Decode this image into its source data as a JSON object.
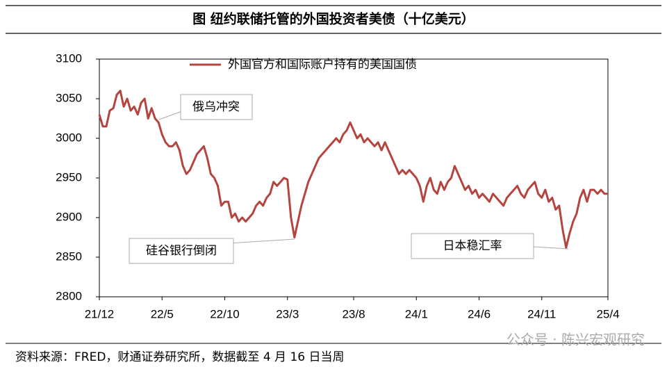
{
  "chart_data": {
    "type": "line",
    "title": "图  纽约联储托管的外国投资者美债（十亿美元）",
    "source": "资料来源：FRED，财通证券研究所，数据截至 4 月 16 日当周",
    "watermark": "公众号 · 陈兴宏观研究",
    "xlim": [
      0,
      146
    ],
    "xticks": [
      {
        "value": 0,
        "label": "21/12"
      },
      {
        "value": 18,
        "label": "22/5"
      },
      {
        "value": 36,
        "label": "22/10"
      },
      {
        "value": 54,
        "label": "23/3"
      },
      {
        "value": 73,
        "label": "23/8"
      },
      {
        "value": 91,
        "label": "24/1"
      },
      {
        "value": 109,
        "label": "24/6"
      },
      {
        "value": 127,
        "label": "24/11"
      },
      {
        "value": 146,
        "label": "25/4"
      }
    ],
    "ylim": [
      2800,
      3100
    ],
    "yticks": [
      2800,
      2850,
      2900,
      2950,
      3000,
      3050,
      3100
    ],
    "series": [
      {
        "name": "外国官方和国际账户持有的美国国债",
        "color": "#b5443f",
        "values": [
          3030,
          3015,
          3015,
          3035,
          3038,
          3055,
          3060,
          3040,
          3050,
          3035,
          3040,
          3030,
          3045,
          3050,
          3025,
          3038,
          3025,
          3020,
          3005,
          2995,
          2990,
          2990,
          2995,
          2985,
          2965,
          2955,
          2960,
          2970,
          2980,
          2985,
          2990,
          2975,
          2955,
          2950,
          2940,
          2915,
          2920,
          2920,
          2900,
          2905,
          2895,
          2900,
          2895,
          2900,
          2905,
          2915,
          2920,
          2915,
          2925,
          2930,
          2945,
          2940,
          2945,
          2950,
          2948,
          2900,
          2875,
          2895,
          2915,
          2930,
          2945,
          2955,
          2965,
          2975,
          2980,
          2985,
          2990,
          2995,
          3000,
          2995,
          3005,
          3010,
          3020,
          3010,
          3000,
          3005,
          2995,
          3000,
          2995,
          2990,
          2995,
          2985,
          2995,
          2985,
          2975,
          2965,
          2955,
          2960,
          2955,
          2960,
          2955,
          2950,
          2940,
          2920,
          2940,
          2950,
          2935,
          2930,
          2945,
          2935,
          2945,
          2950,
          2965,
          2955,
          2945,
          2935,
          2940,
          2930,
          2935,
          2925,
          2930,
          2925,
          2920,
          2930,
          2925,
          2920,
          2915,
          2925,
          2930,
          2935,
          2940,
          2930,
          2925,
          2935,
          2940,
          2945,
          2930,
          2925,
          2935,
          2920,
          2925,
          2910,
          2915,
          2885,
          2862,
          2880,
          2895,
          2905,
          2925,
          2935,
          2920,
          2935,
          2935,
          2930,
          2935,
          2930,
          2930
        ]
      }
    ],
    "annotations": [
      {
        "text": "俄乌冲突"
      },
      {
        "text": "硅谷银行倒闭"
      },
      {
        "text": "日本稳汇率"
      }
    ]
  }
}
